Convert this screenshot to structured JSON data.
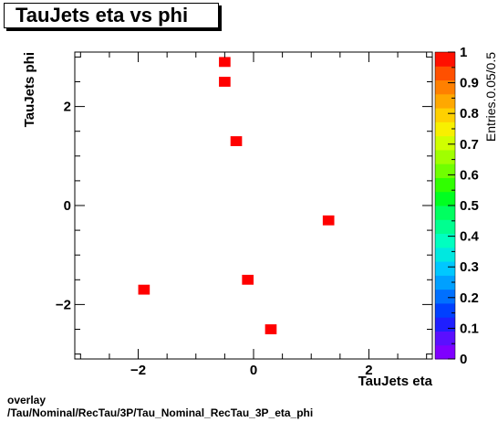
{
  "title": "TauJets eta vs phi",
  "footer": {
    "line1": "overlay",
    "line2": "/Tau/Nominal/RecTau/3P/Tau_Nominal_RecTau_3P_eta_phi"
  },
  "chart_data": {
    "type": "heatmap",
    "title": "TauJets eta vs phi",
    "xlabel": "TauJets eta",
    "ylabel": "TauJets phi",
    "zlabel": "Entries.0.05/0.5",
    "xlim": [
      -3.1,
      3.1
    ],
    "ylim": [
      -3.1,
      3.1
    ],
    "zlim": [
      0,
      1
    ],
    "x_ticks": [
      -2,
      0,
      2
    ],
    "x_tick_labels": [
      "−2",
      "0",
      "2"
    ],
    "y_ticks": [
      -2,
      0,
      2
    ],
    "y_tick_labels": [
      "−2",
      "0",
      "2"
    ],
    "z_ticks": [
      0,
      0.1,
      0.2,
      0.3,
      0.4,
      0.5,
      0.6,
      0.7,
      0.8,
      0.9,
      1
    ],
    "z_tick_labels": [
      "0",
      "0.1",
      "0.2",
      "0.3",
      "0.4",
      "0.5",
      "0.6",
      "0.7",
      "0.8",
      "0.9",
      "1"
    ],
    "bin_width_x": 0.2,
    "bin_width_y": 0.2,
    "cells": [
      {
        "x": -0.5,
        "y": 2.9,
        "z": 1
      },
      {
        "x": -0.5,
        "y": 2.5,
        "z": 1
      },
      {
        "x": -0.3,
        "y": 1.3,
        "z": 1
      },
      {
        "x": 1.3,
        "y": -0.3,
        "z": 1
      },
      {
        "x": -0.1,
        "y": -1.5,
        "z": 1
      },
      {
        "x": -1.9,
        "y": -1.7,
        "z": 1
      },
      {
        "x": 0.3,
        "y": -2.5,
        "z": 1
      }
    ],
    "palette": [
      "#7f00ff",
      "#5a0fff",
      "#1f1fff",
      "#0040ff",
      "#0070ff",
      "#00a0ff",
      "#00c8ff",
      "#00e8e0",
      "#00ffc0",
      "#00ff90",
      "#00ff60",
      "#00ff20",
      "#30ff00",
      "#70ff00",
      "#a0ff00",
      "#d0ff00",
      "#f8f000",
      "#ffd000",
      "#ffa800",
      "#ff8000",
      "#ff5000",
      "#ff1000"
    ],
    "cell_color": "#ff0000"
  }
}
